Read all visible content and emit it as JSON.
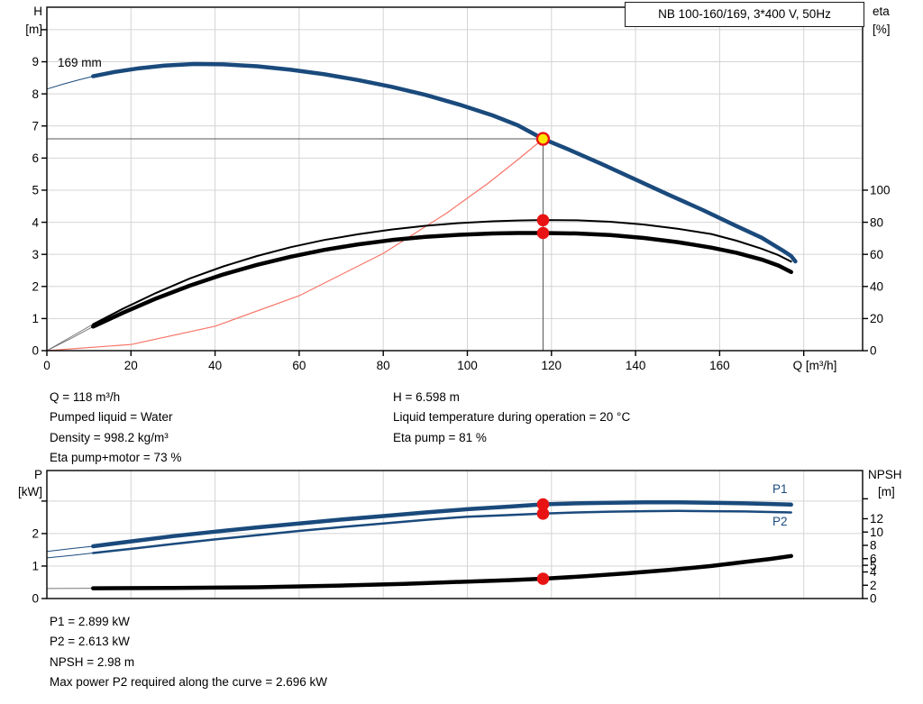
{
  "title_box": "NB 100-160/169, 3*400 V, 50Hz",
  "impeller_label": "169 mm",
  "labels": {
    "h_title": "H",
    "h_unit": "[m]",
    "eta_title": "eta",
    "eta_unit": "[%]",
    "q_label": "Q [m³/h]",
    "p_title": "P",
    "p_unit": "[kW]",
    "npsh_title": "NPSH",
    "npsh_unit": "[m]",
    "p1": "P1",
    "p2": "P2"
  },
  "info_top_left": [
    "Q = 118 m³/h",
    "Pumped liquid = Water",
    "Density = 998.2 kg/m³",
    "Eta pump+motor = 73 %"
  ],
  "info_top_right": [
    "H = 6.598 m",
    "Liquid temperature during operation = 20 °C",
    "Eta pump = 81 %"
  ],
  "info_bottom": [
    "P1 = 2.899 kW",
    "P2 = 2.613 kW",
    "NPSH = 2.98 m",
    "Max power P2 required along the curve = 2.696 kW"
  ],
  "operating_point": {
    "q_m3h": 118,
    "h_m": 6.598,
    "eta_pump_pct": 81,
    "eta_pump_motor_pct": 73,
    "p1_kw": 2.899,
    "p2_kw": 2.613,
    "npsh_m": 2.98,
    "max_p2_kw": 2.696
  },
  "colors": {
    "curve_blue": "#1a4a7c",
    "curve_black": "#000000",
    "thin_gray": "#787878",
    "system_red": "#f87568",
    "dot_red": "#e81414",
    "duty_yellow": "#ffe600",
    "grid": "#d4d4d4",
    "crosshair": "#555555",
    "axis": "#000000"
  },
  "chart_data": [
    {
      "id": "top",
      "type": "line",
      "title": "NB 100-160/169, 3*400 V, 50Hz",
      "x_axis": {
        "label": "Q [m³/h]",
        "range": [
          0,
          194
        ],
        "marks": true,
        "ticks": [
          {
            "v": 0,
            "l": "0"
          },
          {
            "v": 20,
            "l": "20"
          },
          {
            "v": 40,
            "l": "40"
          },
          {
            "v": 60,
            "l": "60"
          },
          {
            "v": 80,
            "l": "80"
          },
          {
            "v": 100,
            "l": "100"
          },
          {
            "v": 120,
            "l": "120"
          },
          {
            "v": 140,
            "l": "140"
          },
          {
            "v": 160,
            "l": "160"
          },
          {
            "v": 180,
            "l": ""
          }
        ]
      },
      "y_left": {
        "label": "H [m]",
        "range": [
          0,
          10.7
        ],
        "ticks": [
          {
            "v": 0,
            "l": "0"
          },
          {
            "v": 1,
            "l": "1"
          },
          {
            "v": 2,
            "l": "2"
          },
          {
            "v": 3,
            "l": "3"
          },
          {
            "v": 4,
            "l": "4"
          },
          {
            "v": 5,
            "l": "5"
          },
          {
            "v": 6,
            "l": "6"
          },
          {
            "v": 7,
            "l": "7"
          },
          {
            "v": 8,
            "l": "8"
          },
          {
            "v": 9,
            "l": "9"
          },
          {
            "v": 10,
            "l": ""
          }
        ]
      },
      "y_right": {
        "label": "eta [%]",
        "range": [
          0,
          214
        ],
        "ticks": [
          {
            "v": 0,
            "l": "0"
          },
          {
            "v": 20,
            "l": "20"
          },
          {
            "v": 40,
            "l": "40"
          },
          {
            "v": 60,
            "l": "60"
          },
          {
            "v": 80,
            "l": "80"
          },
          {
            "v": 100,
            "l": "100"
          }
        ]
      },
      "series": [
        {
          "name": "system-curve",
          "axis": "left",
          "color": "#f87568",
          "width": 1.2,
          "points": [
            [
              0,
              0
            ],
            [
              20,
              0.19
            ],
            [
              40,
              0.76
            ],
            [
              60,
              1.71
            ],
            [
              80,
              3.03
            ],
            [
              95,
              4.28
            ],
            [
              105,
              5.22
            ],
            [
              112,
              5.95
            ],
            [
              118,
              6.598
            ]
          ]
        },
        {
          "name": "eta-pump",
          "axis": "right",
          "color": "#000000",
          "width": 2,
          "thin_until": 11,
          "thin_color": "#787878",
          "points": [
            [
              0,
              0
            ],
            [
              6,
              9
            ],
            [
              11,
              16.5
            ],
            [
              18,
              26
            ],
            [
              26,
              36
            ],
            [
              34,
              45
            ],
            [
              42,
              52.5
            ],
            [
              50,
              59
            ],
            [
              58,
              64.5
            ],
            [
              66,
              69
            ],
            [
              74,
              72.5
            ],
            [
              82,
              75.5
            ],
            [
              90,
              77.8
            ],
            [
              98,
              79.5
            ],
            [
              106,
              80.6
            ],
            [
              112,
              81.1
            ],
            [
              118,
              81.4
            ],
            [
              126,
              81.2
            ],
            [
              134,
              80.3
            ],
            [
              142,
              78.6
            ],
            [
              150,
              76
            ],
            [
              158,
              72.7
            ],
            [
              164,
              68.5
            ],
            [
              170,
              63.5
            ],
            [
              174,
              59.5
            ],
            [
              177,
              55.5
            ]
          ]
        },
        {
          "name": "eta-pump-motor",
          "axis": "right",
          "color": "#000000",
          "width": 4.5,
          "thin_until": 11,
          "thin_color": "#787878",
          "points": [
            [
              0,
              0
            ],
            [
              6,
              8
            ],
            [
              11,
              15
            ],
            [
              18,
              23.5
            ],
            [
              26,
              32.5
            ],
            [
              34,
              40.5
            ],
            [
              42,
              47.5
            ],
            [
              50,
              53.5
            ],
            [
              58,
              58.5
            ],
            [
              66,
              62.8
            ],
            [
              74,
              66.2
            ],
            [
              82,
              68.9
            ],
            [
              90,
              70.9
            ],
            [
              98,
              72.2
            ],
            [
              106,
              73
            ],
            [
              112,
              73.3
            ],
            [
              118,
              73.3
            ],
            [
              126,
              73
            ],
            [
              134,
              72
            ],
            [
              142,
              70.2
            ],
            [
              150,
              67.6
            ],
            [
              158,
              64.2
            ],
            [
              164,
              61
            ],
            [
              170,
              56.8
            ],
            [
              174,
              53
            ],
            [
              177,
              49
            ]
          ]
        },
        {
          "name": "head-169mm",
          "axis": "left",
          "color": "#1a4a7c",
          "width": 4.5,
          "thin_until": 11,
          "thin_color": "#1a4a7c",
          "points": [
            [
              0,
              8.15
            ],
            [
              4,
              8.31
            ],
            [
              8,
              8.45
            ],
            [
              11,
              8.55
            ],
            [
              16,
              8.68
            ],
            [
              22,
              8.8
            ],
            [
              28,
              8.88
            ],
            [
              35,
              8.93
            ],
            [
              42,
              8.92
            ],
            [
              50,
              8.86
            ],
            [
              58,
              8.75
            ],
            [
              66,
              8.61
            ],
            [
              74,
              8.43
            ],
            [
              82,
              8.22
            ],
            [
              90,
              7.97
            ],
            [
              98,
              7.67
            ],
            [
              106,
              7.33
            ],
            [
              112,
              7.02
            ],
            [
              118,
              6.598
            ],
            [
              124,
              6.27
            ],
            [
              132,
              5.81
            ],
            [
              140,
              5.33
            ],
            [
              148,
              4.85
            ],
            [
              156,
              4.38
            ],
            [
              164,
              3.88
            ],
            [
              170,
              3.52
            ],
            [
              175,
              3.12
            ],
            [
              177,
              2.95
            ],
            [
              178,
              2.78
            ]
          ]
        }
      ],
      "crosshair": {
        "h": {
          "v": 6.598,
          "q0": 0,
          "q1": 118
        },
        "v": {
          "q": 118,
          "v0": 0,
          "v1": 6.598
        }
      },
      "markers": [
        {
          "q": 118,
          "v": 81.3,
          "axis": "right",
          "style": "red"
        },
        {
          "q": 118,
          "v": 73.3,
          "axis": "right",
          "style": "red"
        },
        {
          "q": 118,
          "v": 6.598,
          "axis": "left",
          "style": "duty"
        }
      ]
    },
    {
      "id": "bottom",
      "type": "line",
      "title": "",
      "x_axis": {
        "label": "",
        "range": [
          0,
          194
        ],
        "marks": false,
        "ticks": [
          {
            "v": 20,
            "l": ""
          },
          {
            "v": 40,
            "l": ""
          },
          {
            "v": 60,
            "l": ""
          },
          {
            "v": 80,
            "l": ""
          },
          {
            "v": 100,
            "l": ""
          },
          {
            "v": 120,
            "l": ""
          },
          {
            "v": 140,
            "l": ""
          },
          {
            "v": 160,
            "l": ""
          },
          {
            "v": 180,
            "l": ""
          }
        ]
      },
      "y_left": {
        "label": "P [kW]",
        "range": [
          0,
          3.94
        ],
        "ticks": [
          {
            "v": 0,
            "l": "0"
          },
          {
            "v": 1,
            "l": "1"
          },
          {
            "v": 2,
            "l": "2"
          },
          {
            "v": 3,
            "l": ""
          }
        ]
      },
      "y_right": {
        "label": "NPSH [m]",
        "range": [
          0,
          19.25
        ],
        "ticks": [
          {
            "v": 15,
            "l": ""
          },
          {
            "v": 12,
            "l": "12"
          },
          {
            "v": 10,
            "l": "10"
          },
          {
            "v": 8,
            "l": "8"
          },
          {
            "v": 6,
            "l": "6"
          },
          {
            "v": 5,
            "l": "5"
          },
          {
            "v": 4,
            "l": "4"
          },
          {
            "v": 2,
            "l": "2"
          },
          {
            "v": 0,
            "l": "0"
          }
        ]
      },
      "series": [
        {
          "name": "npsh",
          "axis": "right",
          "color": "#000000",
          "width": 4.5,
          "thin_until": 11,
          "thin_color": "#787878",
          "points": [
            [
              0,
              1.5
            ],
            [
              6,
              1.52
            ],
            [
              11,
              1.55
            ],
            [
              30,
              1.6
            ],
            [
              50,
              1.7
            ],
            [
              70,
              1.95
            ],
            [
              85,
              2.2
            ],
            [
              100,
              2.55
            ],
            [
              110,
              2.77
            ],
            [
              118,
              2.98
            ],
            [
              128,
              3.35
            ],
            [
              138,
              3.8
            ],
            [
              148,
              4.3
            ],
            [
              158,
              4.9
            ],
            [
              166,
              5.5
            ],
            [
              172,
              5.95
            ],
            [
              177,
              6.4
            ]
          ]
        },
        {
          "name": "p2",
          "axis": "left",
          "color": "#1a4a7c",
          "width": 2.5,
          "thin_until": 11,
          "thin_color": "#1a4a7c",
          "points": [
            [
              0,
              1.25
            ],
            [
              6,
              1.33
            ],
            [
              11,
              1.4
            ],
            [
              20,
              1.53
            ],
            [
              30,
              1.68
            ],
            [
              40,
              1.82
            ],
            [
              50,
              1.95
            ],
            [
              60,
              2.08
            ],
            [
              70,
              2.2
            ],
            [
              80,
              2.31
            ],
            [
              90,
              2.42
            ],
            [
              100,
              2.52
            ],
            [
              110,
              2.57
            ],
            [
              118,
              2.613
            ],
            [
              126,
              2.65
            ],
            [
              134,
              2.675
            ],
            [
              142,
              2.69
            ],
            [
              150,
              2.696
            ],
            [
              158,
              2.69
            ],
            [
              166,
              2.68
            ],
            [
              172,
              2.665
            ],
            [
              177,
              2.65
            ]
          ]
        },
        {
          "name": "p1",
          "axis": "left",
          "color": "#1a4a7c",
          "width": 4.5,
          "thin_until": 11,
          "thin_color": "#1a4a7c",
          "points": [
            [
              0,
              1.45
            ],
            [
              6,
              1.54
            ],
            [
              11,
              1.61
            ],
            [
              20,
              1.76
            ],
            [
              30,
              1.92
            ],
            [
              40,
              2.06
            ],
            [
              50,
              2.19
            ],
            [
              60,
              2.31
            ],
            [
              70,
              2.43
            ],
            [
              80,
              2.54
            ],
            [
              90,
              2.65
            ],
            [
              100,
              2.75
            ],
            [
              110,
              2.83
            ],
            [
              118,
              2.899
            ],
            [
              126,
              2.93
            ],
            [
              134,
              2.95
            ],
            [
              142,
              2.96
            ],
            [
              150,
              2.96
            ],
            [
              158,
              2.95
            ],
            [
              166,
              2.93
            ],
            [
              172,
              2.91
            ],
            [
              177,
              2.89
            ]
          ]
        }
      ],
      "markers": [
        {
          "q": 118,
          "v": 2.899,
          "axis": "left",
          "style": "red"
        },
        {
          "q": 118,
          "v": 2.613,
          "axis": "left",
          "style": "red"
        },
        {
          "q": 118,
          "v": 2.98,
          "axis": "right",
          "style": "red"
        }
      ]
    }
  ]
}
